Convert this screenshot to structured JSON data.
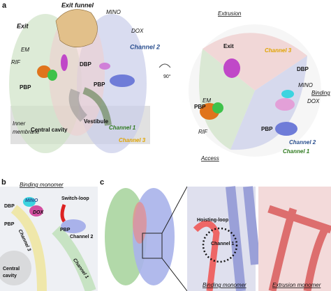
{
  "panels": [
    {
      "letter": "a",
      "labels": [
        "Exit funnel",
        "Exit",
        "MINO",
        "DOX",
        "Channel 2",
        "EM",
        "RIF",
        "DBP",
        "PBP",
        "PBP",
        "Central cavity",
        "Vestibule",
        "Channel 1",
        "Channel 3",
        "Inner",
        "membrane",
        "90°",
        "Extrusion",
        "Exit",
        "Channel 3",
        "DBP",
        "MINO",
        "Binding",
        "DOX",
        "EM",
        "PBP",
        "RIF",
        "PBP",
        "Channel 2",
        "Channel 1",
        "Access"
      ]
    },
    {
      "letter": "b",
      "labels": [
        "Binding monomer",
        "Switch-loop",
        "MINO",
        "DOX",
        "DBP",
        "PBP",
        "Channel 3",
        "PBP",
        "Channel 2",
        "Central",
        "cavity",
        "Channel 1"
      ]
    },
    {
      "letter": "c",
      "labels": [
        "Hoisting-loop",
        "Channel 1",
        "Binding monomer",
        "Extrusion monomer"
      ]
    }
  ]
}
